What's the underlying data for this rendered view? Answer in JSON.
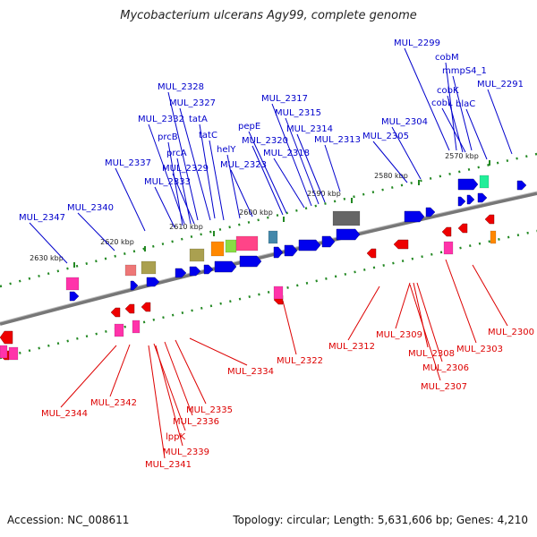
{
  "title": "Mycobacterium ulcerans Agy99, complete genome",
  "accession": "Accession: NC_008611",
  "summary": "Topology: circular; Length: 5,631,606 bp; Genes: 4,210",
  "colors": {
    "forward_label": "#0000cc",
    "reverse_label": "#dd0000",
    "backbone": "#777777",
    "tick": "#228822",
    "forward_gene": "#0000ee",
    "reverse_gene": "#ee0000"
  },
  "scale_ticks": [
    "2630 kbp",
    "2620 kbp",
    "2610 kbp",
    "2600 kbp",
    "2590 kbp",
    "2580 kbp",
    "2570 kbp"
  ],
  "forward_labels": [
    "MUL_2299",
    "cobM",
    "mmpS4_1",
    "cobK",
    "MUL_2291",
    "cobL",
    "blaC",
    "MUL_2328",
    "MUL_2317",
    "MUL_2327",
    "MUL_2315",
    "MUL_2332",
    "tatA",
    "MUL_2304",
    "pepE",
    "MUL_2314",
    "prcB",
    "tatC",
    "MUL_2305",
    "MUL_2320",
    "MUL_2313",
    "helY",
    "prcA",
    "MUL_2318",
    "MUL_2337",
    "MUL_2329",
    "MUL_2323",
    "MUL_2333",
    "MUL_2340",
    "MUL_2347"
  ],
  "reverse_labels": [
    "MUL_2300",
    "MUL_2312",
    "MUL_2309",
    "MUL_2303",
    "MUL_2308",
    "MUL_2306",
    "MUL_2307",
    "MUL_2322",
    "MUL_2334",
    "MUL_2335",
    "MUL_2336",
    "MUL_2342",
    "MUL_2344",
    "lppK",
    "MUL_2339",
    "MUL_2341"
  ]
}
